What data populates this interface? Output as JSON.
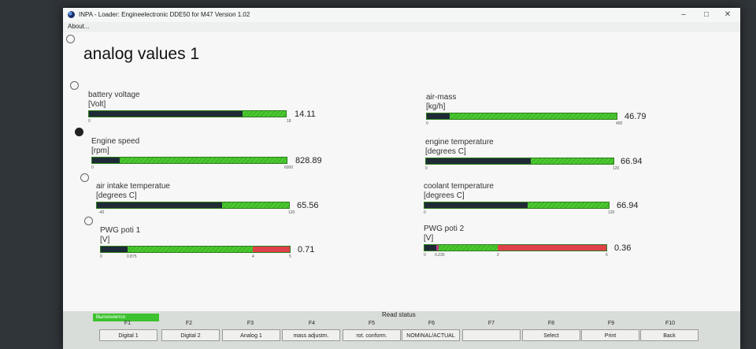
{
  "window": {
    "title": "INPA - Loader:  Engineelectronic DDE50 for M47 Version 1.02",
    "minimize": "–",
    "maximize": "□",
    "close": "✕"
  },
  "menu": {
    "about": "About..."
  },
  "page": {
    "title": "analog values 1"
  },
  "gauges": [
    {
      "name": "battery voltage",
      "unit": "[Volt]",
      "value": "14.11",
      "min": "0",
      "max": "18",
      "fill": 0.78
    },
    {
      "name": "air-mass",
      "unit": "[kg/h]",
      "value": "46.79",
      "min": "0",
      "max": "400",
      "fill": 0.12
    },
    {
      "name": "Engine speed",
      "unit": "[rpm]",
      "value": "828.89",
      "min": "0",
      "max": "6000",
      "fill": 0.14
    },
    {
      "name": "engine temperature",
      "unit": "[degrees C]",
      "value": "66.94",
      "min": "0",
      "max": "120",
      "fill": 0.56
    },
    {
      "name": "air intake temperatue",
      "unit": "[degrees C]",
      "value": "65.56",
      "min": "-40",
      "max": "120",
      "fill": 0.65
    },
    {
      "name": "coolant temperature",
      "unit": "[degrees C]",
      "value": "66.94",
      "min": "0",
      "max": "120",
      "fill": 0.56
    },
    {
      "name": "PWG poti 1",
      "unit": "[V]",
      "value": "0.71",
      "min": "0",
      "max": "5",
      "mid": "0.875",
      "warn": "4",
      "fill": 0.14
    },
    {
      "name": "PWG poti 2",
      "unit": "[V]",
      "value": "0.36",
      "min": "0",
      "max": "5",
      "mid": "0.235",
      "warn": "2",
      "fill": 0.07
    }
  ],
  "status": {
    "busy": "Выполняется",
    "read_status": "Read status"
  },
  "function_keys": [
    {
      "key": "F1",
      "label": "Digital 1"
    },
    {
      "key": "F2",
      "label": "Digital 2"
    },
    {
      "key": "F3",
      "label": "Analog 1"
    },
    {
      "key": "F4",
      "label": "mass adjustm."
    },
    {
      "key": "F5",
      "label": "rot. conform."
    },
    {
      "key": "F6",
      "label": "NOMINAL/ACTUAL"
    },
    {
      "key": "F7",
      "label": ""
    },
    {
      "key": "F8",
      "label": "Select"
    },
    {
      "key": "F9",
      "label": "Print"
    },
    {
      "key": "F10",
      "label": "Back"
    }
  ],
  "colors": {
    "bar_green": "#3fb826",
    "bar_fill": "#1e2b36",
    "bar_red": "#e0404a",
    "busy_green": "#3cc22f"
  }
}
